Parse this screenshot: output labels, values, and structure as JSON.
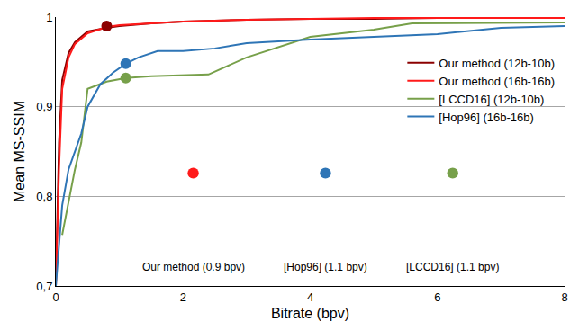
{
  "chart_data": {
    "type": "line",
    "x_label": "Bitrate (bpv)",
    "y_label": "Mean MS-SSIM",
    "xlim": [
      0,
      8
    ],
    "ylim": [
      0.7,
      1
    ],
    "xticks": [
      0,
      2,
      4,
      6,
      8
    ],
    "yticks": [
      {
        "value": 0.7,
        "label": "0,7"
      },
      {
        "value": 0.8,
        "label": "0,8"
      },
      {
        "value": 0.9,
        "label": "0,9"
      },
      1
    ],
    "grid": "y",
    "legend": "top-right",
    "series": [
      {
        "name": "Our method (12b-10b)",
        "color": "#8b0000",
        "x": [
          0,
          0.05,
          0.1,
          0.2,
          0.3,
          0.5,
          0.8,
          1,
          1.5,
          2,
          3,
          4,
          5,
          6,
          7,
          8
        ],
        "values": [
          0.7,
          0.86,
          0.93,
          0.96,
          0.972,
          0.984,
          0.988,
          0.99,
          0.993,
          0.995,
          0.997,
          0.998,
          0.998,
          0.999,
          0.999,
          0.999
        ],
        "highlight": {
          "x": 0.8,
          "y": 0.99
        }
      },
      {
        "name": "Our method (16b-16b)",
        "color": "#ff1a1a",
        "x": [
          0,
          0.05,
          0.1,
          0.2,
          0.3,
          0.5,
          0.8,
          1,
          1.5,
          2,
          3,
          4,
          5,
          6,
          7,
          8
        ],
        "values": [
          0.7,
          0.83,
          0.92,
          0.955,
          0.97,
          0.982,
          0.989,
          0.991,
          0.993,
          0.995,
          0.997,
          0.998,
          0.999,
          0.999,
          0.999,
          0.999
        ]
      },
      {
        "name": "[LCCD16] (12b-10b)",
        "color": "#77a04a",
        "x": [
          0.1,
          0.3,
          0.4,
          0.5,
          0.8,
          1.1,
          1.5,
          2.4,
          3,
          4,
          5,
          5.6,
          8
        ],
        "values": [
          0.757,
          0.83,
          0.86,
          0.92,
          0.928,
          0.932,
          0.934,
          0.936,
          0.955,
          0.978,
          0.986,
          0.993,
          0.994
        ],
        "highlight": {
          "x": 1.1,
          "y": 0.932
        }
      },
      {
        "name": "[Hop96] (16b-16b)",
        "color": "#2e75b6",
        "x": [
          0,
          0.1,
          0.2,
          0.3,
          0.4,
          0.5,
          0.7,
          0.9,
          1.1,
          1.3,
          1.6,
          2,
          2.5,
          3,
          4,
          5,
          6,
          7,
          8
        ],
        "values": [
          0.7,
          0.79,
          0.83,
          0.85,
          0.87,
          0.9,
          0.925,
          0.938,
          0.948,
          0.955,
          0.962,
          0.962,
          0.965,
          0.971,
          0.975,
          0.978,
          0.981,
          0.988,
          0.99
        ],
        "highlight": {
          "x": 1.1,
          "y": 0.948
        }
      }
    ],
    "insets": [
      {
        "label": "Our method (0.9 bpv)",
        "color": "#ff1a1a"
      },
      {
        "label": "[Hop96] (1.1 bpv)",
        "color": "#2e75b6"
      },
      {
        "label": "[LCCD16] (1.1 bpv)",
        "color": "#77a04a"
      }
    ]
  }
}
